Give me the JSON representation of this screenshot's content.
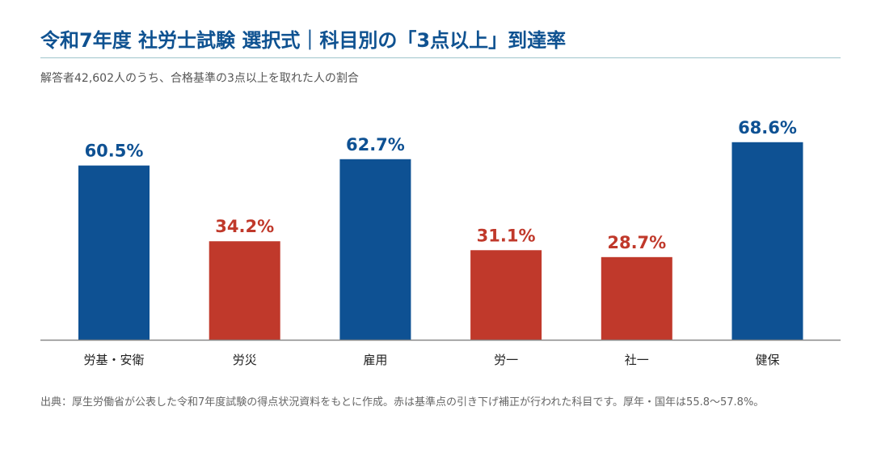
{
  "header": {
    "title": "令和7年度 社労士試験 選択式｜科目別の「3点以上」到達率",
    "subtitle": "解答者42,602人のうち、合格基準の3点以上を取れた人の割合"
  },
  "footnote": "出典：厚生労働省が公表した令和7年度試験の得点状況資料をもとに作成。赤は基準点の引き下げ補正が行われた科目です。厚年・国年は55.8〜57.8%。",
  "colors": {
    "standard": "#0e5193",
    "adjusted": "#c0392b",
    "axis": "#888888"
  },
  "chart_data": {
    "type": "bar",
    "categories": [
      "労基・安衛",
      "労災",
      "雇用",
      "労一",
      "社一",
      "健保"
    ],
    "values": [
      60.5,
      34.2,
      62.7,
      31.1,
      28.7,
      68.6
    ],
    "value_labels": [
      "60.5%",
      "34.2%",
      "62.7%",
      "31.1%",
      "28.7%",
      "68.6%"
    ],
    "highlight": [
      "standard",
      "adjusted",
      "standard",
      "adjusted",
      "adjusted",
      "standard"
    ],
    "unit": "%",
    "ylim": [
      0,
      100
    ],
    "grid": false,
    "legend": "none",
    "title": "",
    "xlabel": "",
    "ylabel": ""
  }
}
